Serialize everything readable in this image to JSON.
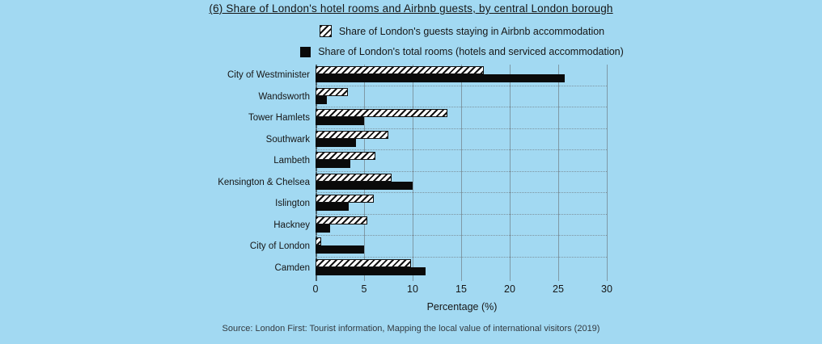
{
  "title": "(6) Share of London's hotel rooms and Airbnb guests, by central London borough",
  "source": "Source: London First: Tourist information, Mapping the local value of international visitors (2019)",
  "colors": {
    "background": "#a2d9f2",
    "bar_solid": "#0a0a0a",
    "hatch_stripe": "#111111",
    "hatch_fill": "#ffffff",
    "gridline": "#7f99a6",
    "text": "#161616"
  },
  "chart_data": {
    "type": "bar",
    "orientation": "horizontal",
    "title": "(6) Share of London's hotel rooms and Airbnb guests, by central London borough",
    "xlabel": "Percentage (%)",
    "ylabel": "",
    "xlim": [
      0,
      30
    ],
    "x_ticks": [
      0,
      5,
      10,
      15,
      20,
      25,
      30
    ],
    "grid": true,
    "legend_position": "top-center",
    "categories": [
      "City of Westminister",
      "Wandsworth",
      "Tower Hamlets",
      "Southwark",
      "Lambeth",
      "Kensington & Chelsea",
      "Islington",
      "Hackney",
      "City of London",
      "Camden"
    ],
    "series": [
      {
        "name": "Share of London's guests staying in Airbnb accommodation",
        "style": "hatched",
        "values": [
          17.3,
          3.3,
          13.6,
          7.5,
          6.2,
          7.8,
          6.0,
          5.3,
          0.6,
          9.8
        ]
      },
      {
        "name": "Share of London's total rooms (hotels and serviced accommodation)",
        "style": "solid-black",
        "values": [
          25.7,
          1.2,
          5.0,
          4.2,
          3.6,
          10.0,
          3.4,
          1.5,
          5.0,
          11.3
        ]
      }
    ]
  }
}
